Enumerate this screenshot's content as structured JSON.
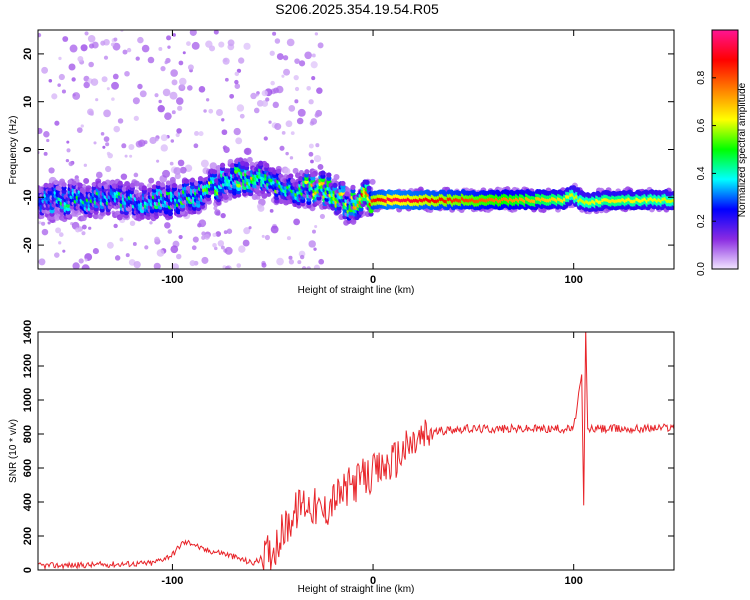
{
  "title": "S206.2025.354.19.54.R05",
  "chart_data": [
    {
      "type": "heatmap",
      "xlabel": "Height of straight line (km)",
      "ylabel": "Frequency (Hz)",
      "xlim": [
        -167,
        150
      ],
      "ylim": [
        -25,
        25
      ],
      "x_ticks": [
        -100,
        0,
        100
      ],
      "y_ticks": [
        -20,
        -10,
        0,
        10,
        20
      ],
      "colorbar": {
        "label": "Normalized spectral amplitude",
        "range": [
          0,
          1
        ],
        "ticks": [
          0.0,
          0.2,
          0.4,
          0.6,
          0.8
        ],
        "tick_labels": [
          "0.0",
          "0.2",
          "0.4",
          "0.6",
          "0.8"
        ],
        "colors": [
          "#f2e6ff",
          "#8a2be2",
          "#0000ff",
          "#00ffff",
          "#00ff00",
          "#ffff00",
          "#ff8000",
          "#ff0000",
          "#ff1493"
        ]
      },
      "ridge": {
        "x": [
          -167,
          -150,
          -130,
          -110,
          -90,
          -80,
          -70,
          -60,
          -50,
          -40,
          -30,
          -20,
          -12,
          -5,
          0,
          10,
          50,
          95,
          100,
          105,
          120,
          150
        ],
        "freq": [
          -11,
          -10.5,
          -10.5,
          -10.5,
          -10,
          -8,
          -6,
          -6,
          -7,
          -8,
          -8.5,
          -8.5,
          -12,
          -10.5,
          -10.5,
          -10.5,
          -10.5,
          -10.5,
          -9.5,
          -11,
          -10.5,
          -10.5
        ],
        "amplitude": [
          0.35,
          0.4,
          0.38,
          0.4,
          0.42,
          0.48,
          0.45,
          0.55,
          0.45,
          0.4,
          0.55,
          0.6,
          0.5,
          0.7,
          0.85,
          0.95,
          0.8,
          0.65,
          0.6,
          0.6,
          0.65,
          0.6
        ]
      }
    },
    {
      "type": "line",
      "xlabel": "Height of straight line (km)",
      "ylabel": "SNR (10 * v/v)",
      "xlim": [
        -167,
        150
      ],
      "ylim": [
        0,
        1400
      ],
      "x_ticks": [
        -100,
        0,
        100
      ],
      "y_ticks": [
        0,
        200,
        400,
        600,
        800,
        1000,
        1200,
        1400
      ],
      "series": [
        {
          "name": "SNR",
          "color": "#e8252a",
          "x": [
            -167,
            -140,
            -110,
            -100,
            -95,
            -90,
            -85,
            -80,
            -75,
            -65,
            -60,
            -55,
            -50,
            -45,
            -40,
            -35,
            -30,
            -25,
            -20,
            -15,
            -10,
            -5,
            0,
            5,
            10,
            15,
            20,
            25,
            30,
            40,
            60,
            80,
            100,
            104,
            105,
            106,
            107,
            110,
            130,
            150
          ],
          "y": [
            25,
            30,
            40,
            90,
            160,
            160,
            120,
            110,
            100,
            60,
            40,
            70,
            120,
            220,
            320,
            400,
            380,
            330,
            420,
            450,
            510,
            540,
            560,
            600,
            640,
            700,
            740,
            780,
            810,
            830,
            830,
            830,
            830,
            1150,
            380,
            1420,
            830,
            830,
            830,
            840
          ]
        }
      ]
    }
  ]
}
